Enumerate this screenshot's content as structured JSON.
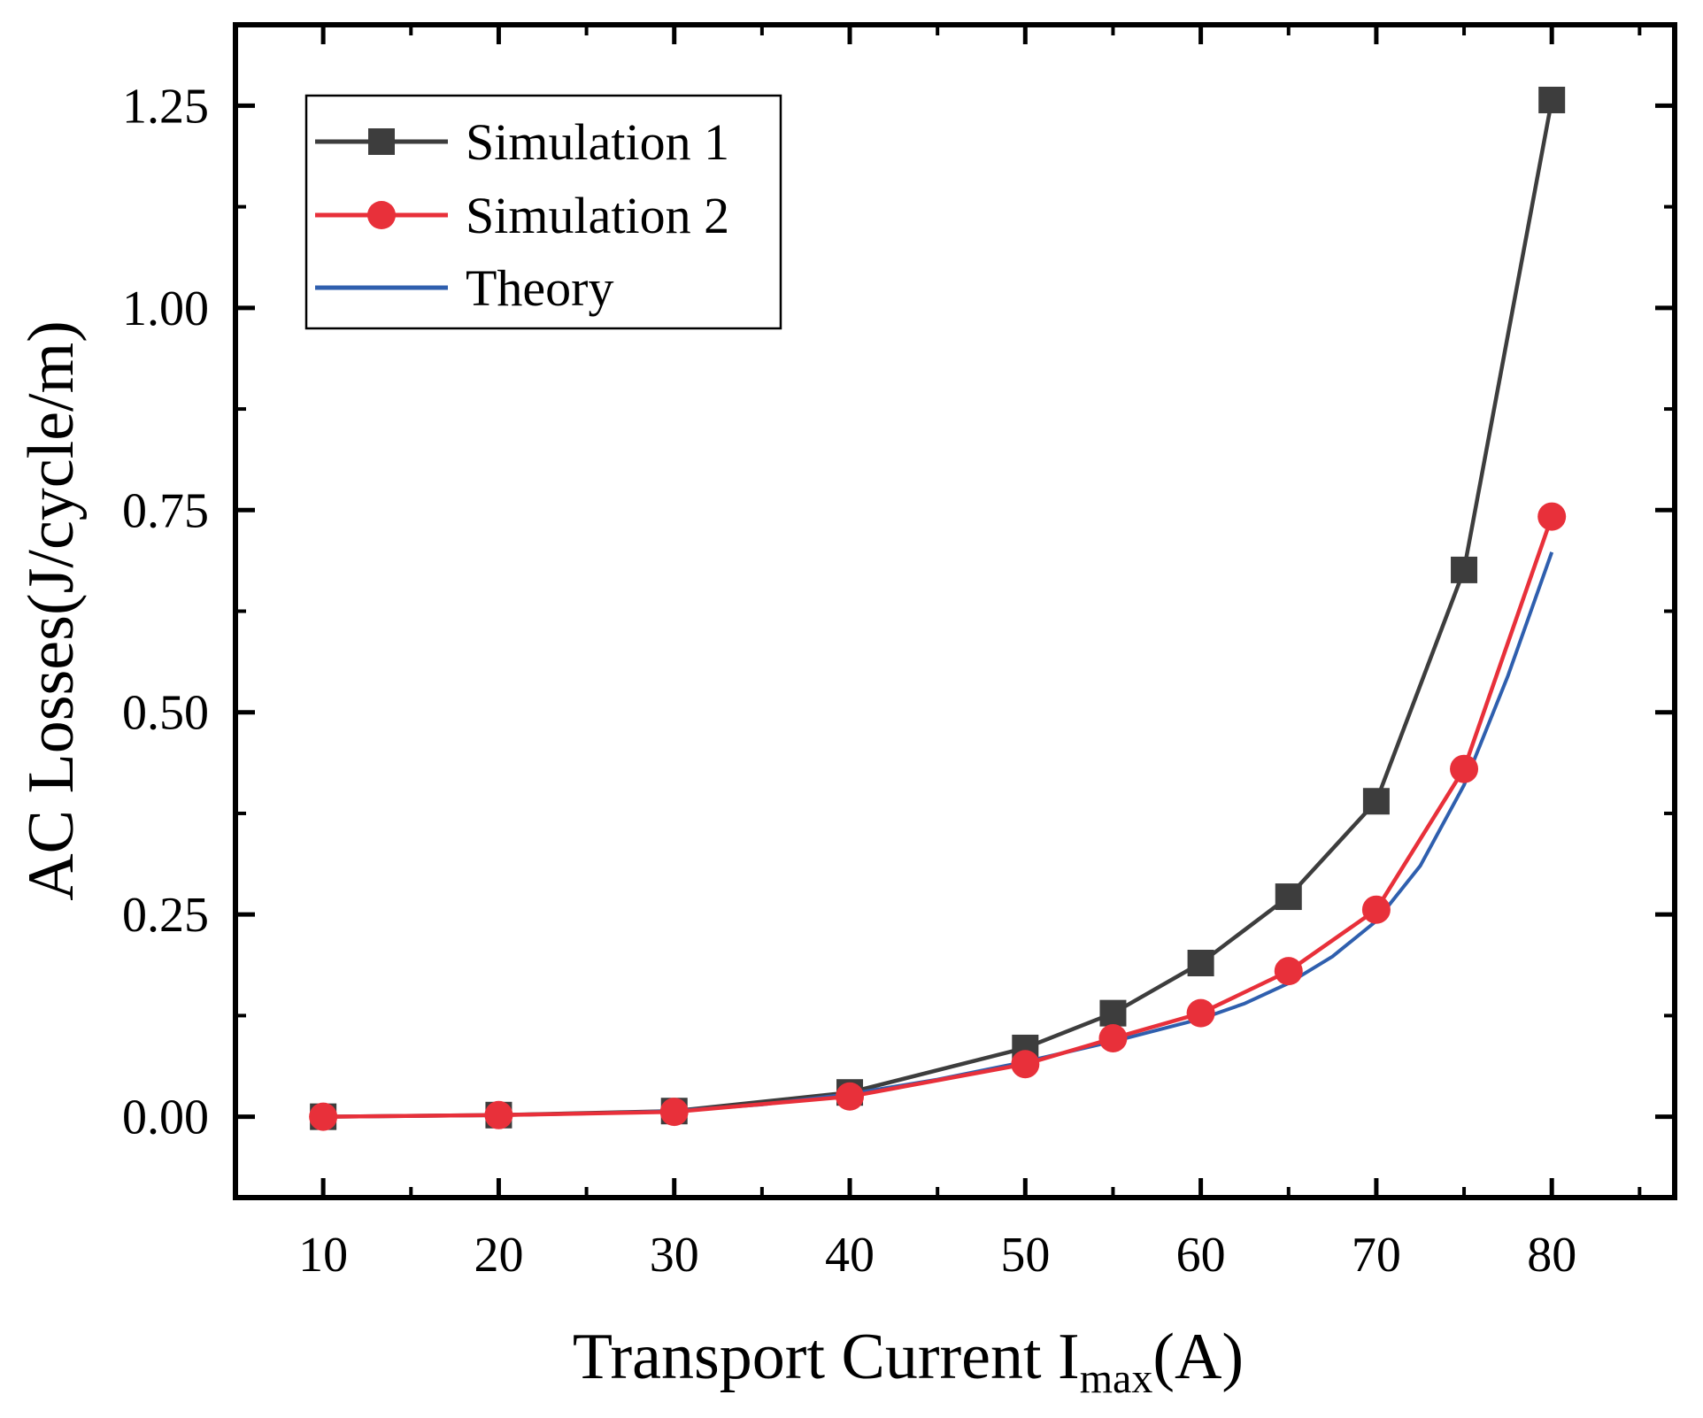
{
  "chart_data": {
    "type": "line",
    "title": "",
    "xlabel": "Transport Current I",
    "xlabel_subscript": "max",
    "xlabel_suffix": "(A)",
    "ylabel": "AC Losses(J/cycle/m)",
    "xlim": [
      5,
      87
    ],
    "ylim": [
      -0.1,
      1.35
    ],
    "xticks": [
      10,
      20,
      30,
      40,
      50,
      60,
      70,
      80
    ],
    "xtick_labels": [
      "10",
      "20",
      "30",
      "40",
      "50",
      "60",
      "70",
      "80"
    ],
    "yticks": [
      0.0,
      0.25,
      0.5,
      0.75,
      1.0,
      1.25
    ],
    "ytick_labels": [
      "0.00",
      "0.25",
      "0.50",
      "0.75",
      "1.00",
      "1.25"
    ],
    "legend_position": "top-left",
    "series": [
      {
        "name": "Simulation 1",
        "color": "#3d3d3d",
        "marker": "square",
        "x": [
          10,
          20,
          30,
          40,
          50,
          55,
          60,
          65,
          70,
          75,
          80
        ],
        "y": [
          0.0,
          0.002,
          0.007,
          0.03,
          0.085,
          0.128,
          0.19,
          0.272,
          0.39,
          0.676,
          1.257
        ]
      },
      {
        "name": "Simulation 2",
        "color": "#e8303a",
        "marker": "circle",
        "x": [
          10,
          20,
          30,
          40,
          50,
          55,
          60,
          65,
          70,
          75,
          80
        ],
        "y": [
          0.0,
          0.002,
          0.006,
          0.025,
          0.065,
          0.097,
          0.128,
          0.18,
          0.256,
          0.43,
          0.742
        ]
      },
      {
        "name": "Theory",
        "color": "#2f5fae",
        "marker": "none",
        "x": [
          10,
          15,
          20,
          25,
          30,
          35,
          40,
          45,
          50,
          55,
          60,
          62.5,
          65,
          67.5,
          70,
          72.5,
          75,
          77.5,
          80
        ],
        "y": [
          0.0,
          0.001,
          0.002,
          0.004,
          0.007,
          0.015,
          0.028,
          0.046,
          0.068,
          0.093,
          0.121,
          0.14,
          0.165,
          0.198,
          0.242,
          0.31,
          0.41,
          0.545,
          0.698
        ]
      }
    ]
  }
}
